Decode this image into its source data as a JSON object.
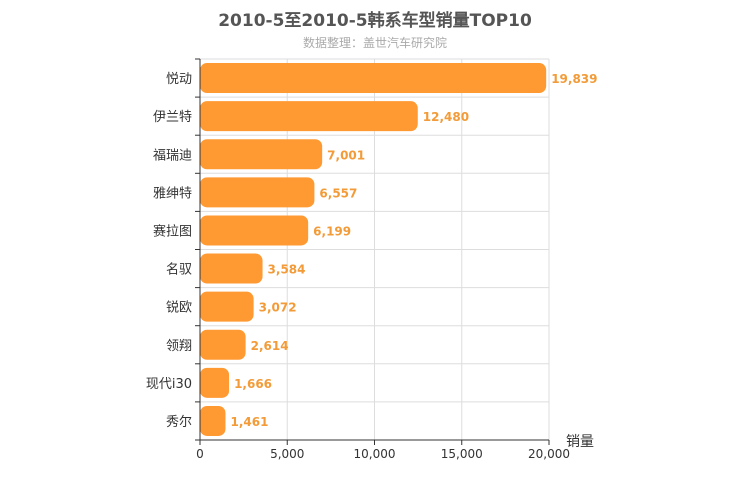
{
  "chart_data": {
    "type": "bar",
    "orientation": "horizontal",
    "title": "2010-5至2010-5韩系车型销量TOP10",
    "subtitle": "数据整理：盖世汽车研究院",
    "categories": [
      "悦动",
      "伊兰特",
      "福瑞迪",
      "雅绅特",
      "赛拉图",
      "名驭",
      "锐欧",
      "领翔",
      "现代i30",
      "秀尔"
    ],
    "values": [
      19839,
      12480,
      7001,
      6557,
      6199,
      3584,
      3072,
      2614,
      1666,
      1461
    ],
    "value_labels": [
      "19,839",
      "12,480",
      "7,001",
      "6,557",
      "6,199",
      "3,584",
      "3,072",
      "2,614",
      "1,666",
      "1,461"
    ],
    "xlabel": "销量",
    "ylabel": "",
    "xlim": [
      0,
      20000
    ],
    "xticks": [
      0,
      5000,
      10000,
      15000,
      20000
    ],
    "xtick_labels": [
      "0",
      "5,000",
      "10,000",
      "15,000",
      "20,000"
    ],
    "grid": true,
    "colors": {
      "bar": "#ff9a33",
      "label": "#f29b38",
      "grid": "#dddddd",
      "axis": "#333333"
    }
  }
}
